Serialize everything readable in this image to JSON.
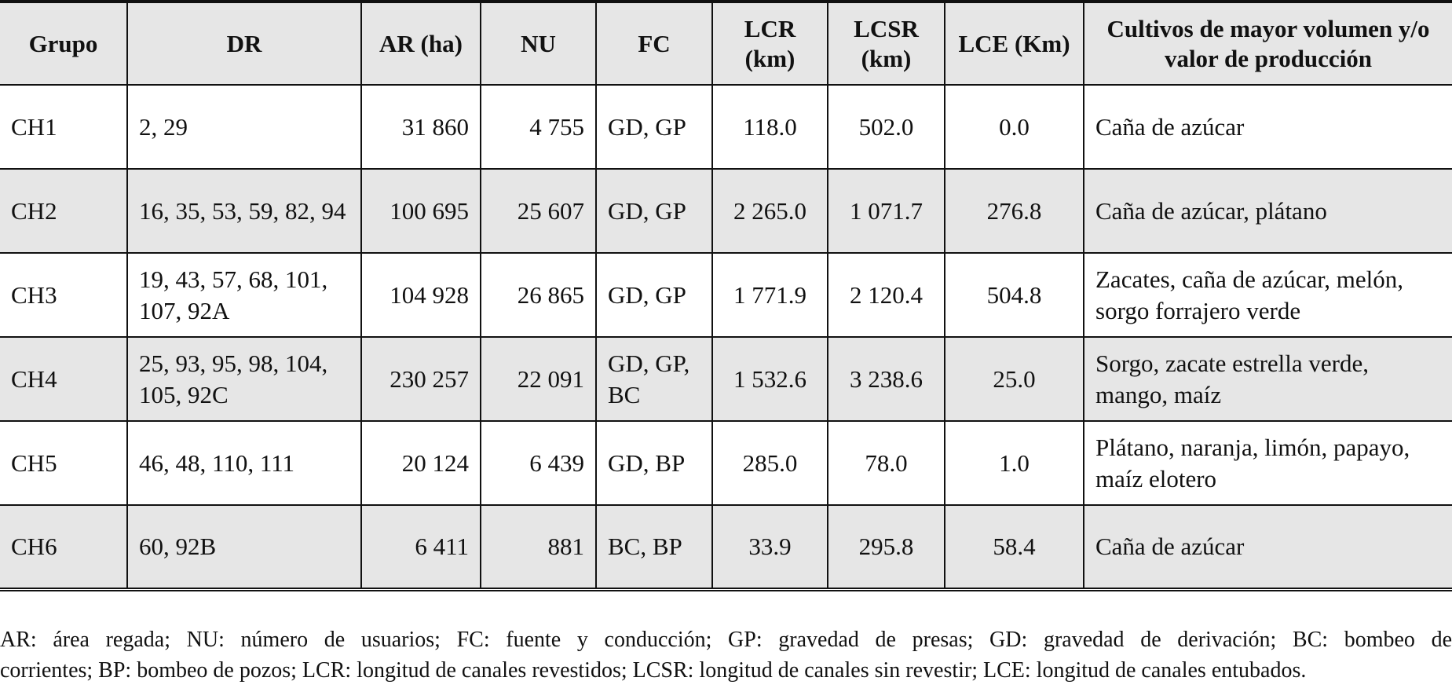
{
  "table": {
    "headers": [
      "Grupo",
      "DR",
      "AR (ha)",
      "NU",
      "FC",
      "LCR (km)",
      "LCSR (km)",
      "LCE (Km)",
      "Cultivos de mayor volumen y/o valor de producción"
    ],
    "rows": [
      [
        "CH1",
        "2, 29",
        "31 860",
        "4 755",
        "GD, GP",
        "118.0",
        "502.0",
        "0.0",
        "Caña de azúcar"
      ],
      [
        "CH2",
        "16, 35, 53, 59, 82, 94",
        "100 695",
        "25 607",
        "GD, GP",
        "2 265.0",
        "1 071.7",
        "276.8",
        "Caña de azúcar, plátano"
      ],
      [
        "CH3",
        "19, 43, 57, 68, 101, 107, 92A",
        "104 928",
        "26 865",
        "GD, GP",
        "1 771.9",
        "2 120.4",
        "504.8",
        "Zacates, caña de azúcar, melón, sorgo forrajero verde"
      ],
      [
        "CH4",
        "25, 93, 95, 98, 104, 105, 92C",
        "230 257",
        "22 091",
        "GD, GP, BC",
        "1 532.6",
        "3 238.6",
        "25.0",
        "Sorgo, zacate estrella verde, mango, maíz"
      ],
      [
        "CH5",
        "46, 48, 110, 111",
        "20 124",
        "6 439",
        "GD, BP",
        "285.0",
        "78.0",
        "1.0",
        "Plátano, naranja, limón, papayo, maíz elotero"
      ],
      [
        "CH6",
        "60, 92B",
        "6 411",
        "881",
        "BC, BP",
        "33.9",
        "295.8",
        "58.4",
        "Caña de azúcar"
      ]
    ]
  },
  "footnote": {
    "line1": "AR: área regada; NU: número de usuarios; FC: fuente y conducción; GP: gravedad de presas; GD: gravedad de derivación; BC: bombeo de",
    "line2": "corrientes; BP: bombeo de pozos; LCR: longitud de canales revestidos; LCSR: longitud de canales sin revestir; LCE: longitud de canales entubados."
  },
  "colors": {
    "header_bg": "#e6e6e6",
    "shaded_row_bg": "#e6e6e6",
    "border": "#111111"
  }
}
